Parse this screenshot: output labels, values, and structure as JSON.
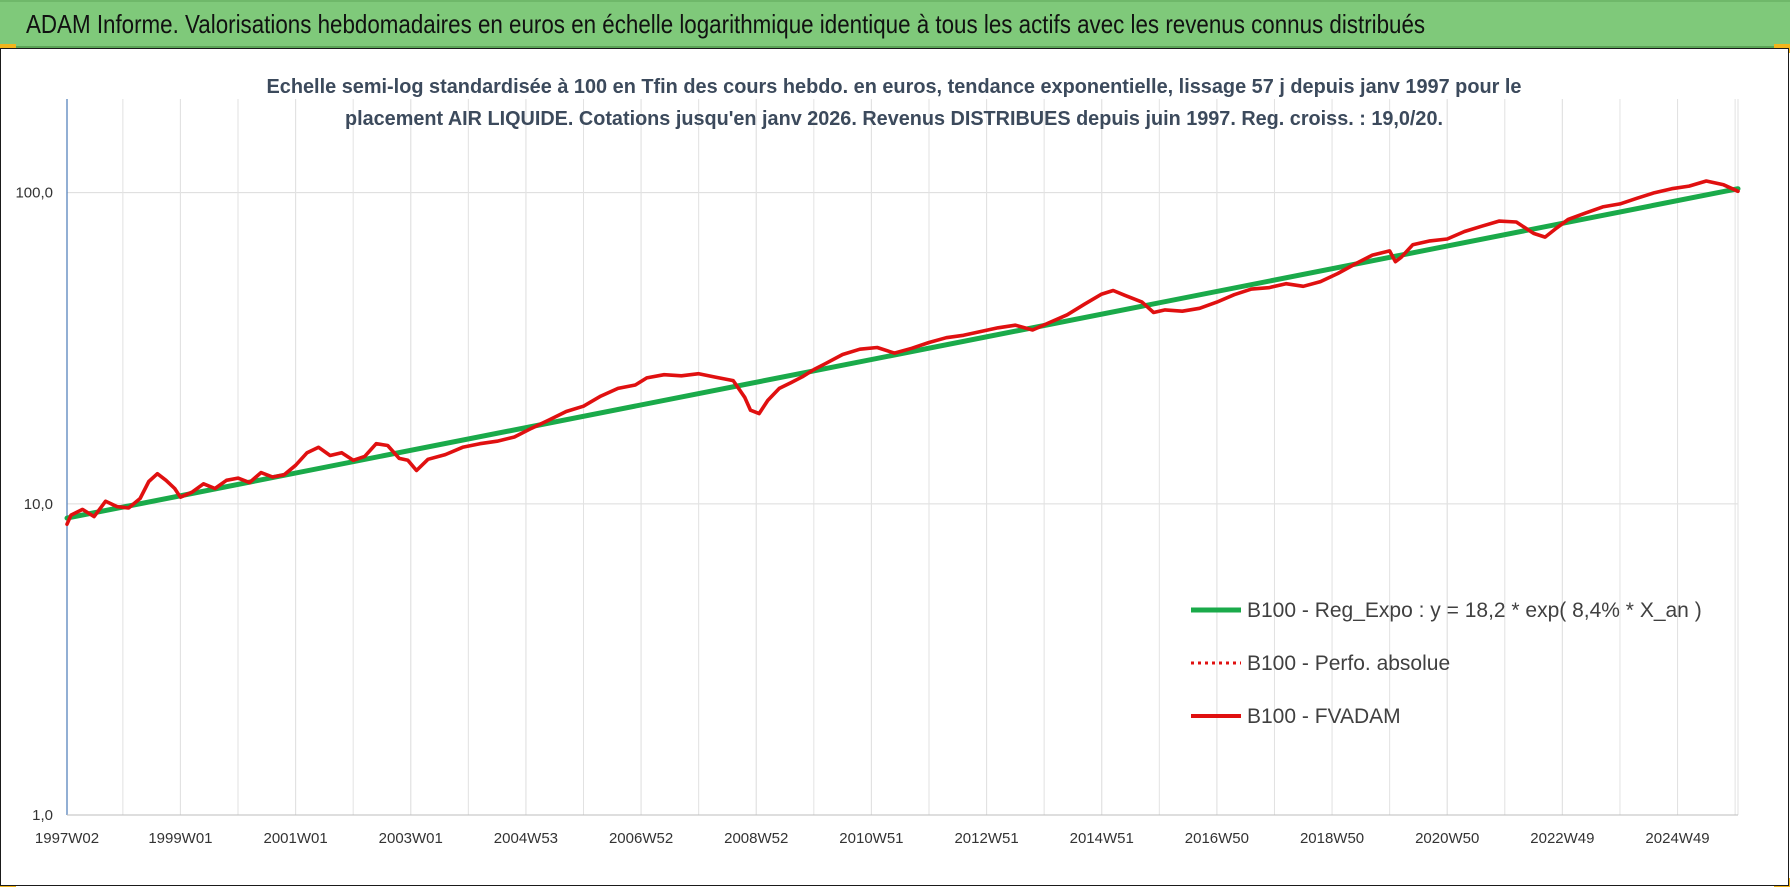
{
  "banner": {
    "title": "ADAM Informe. Valorisations hebdomadaires en euros en échelle logarithmique identique à tous les actifs avec les revenus connus distribués",
    "background": "#7fc97a",
    "corner_color": "#f2b51c"
  },
  "chart_data": {
    "type": "line",
    "title_lines": [
      "Echelle semi-log standardisée à 100 en Tfin des cours hebdo. en euros, tendance exponentielle, lissage 57 j depuis janv 1997 pour le",
      "placement AIR LIQUIDE. Cotations jusqu'en janv 2026. Revenus DISTRIBUES depuis juin 1997. Reg. croiss. : 19,0/20."
    ],
    "y_scale": "log",
    "ylim": [
      1,
      200
    ],
    "y_ticks": [
      {
        "value": 1,
        "label": "1,0"
      },
      {
        "value": 10,
        "label": "10,0"
      },
      {
        "value": 100,
        "label": "100,0"
      }
    ],
    "xlim": [
      1997.03,
      2026.05
    ],
    "x_ticks": [
      {
        "value": 1997.03,
        "label": "1997W02"
      },
      {
        "value": 1999.0,
        "label": "1999W01"
      },
      {
        "value": 2001.0,
        "label": "2001W01"
      },
      {
        "value": 2003.0,
        "label": "2003W01"
      },
      {
        "value": 2005.0,
        "label": "2004W53"
      },
      {
        "value": 2007.0,
        "label": "2006W52"
      },
      {
        "value": 2009.0,
        "label": "2008W52"
      },
      {
        "value": 2011.0,
        "label": "2010W51"
      },
      {
        "value": 2013.0,
        "label": "2012W51"
      },
      {
        "value": 2015.0,
        "label": "2014W51"
      },
      {
        "value": 2017.0,
        "label": "2016W50"
      },
      {
        "value": 2019.0,
        "label": "2018W50"
      },
      {
        "value": 2021.0,
        "label": "2020W50"
      },
      {
        "value": 2023.0,
        "label": "2022W49"
      },
      {
        "value": 2025.0,
        "label": "2024W49"
      }
    ],
    "grid": "vertical and horizontal",
    "legend_position": "bottom-right",
    "series": [
      {
        "name": "B100 - Reg_Expo : y = 18,2 * exp( 8,4% *  X_an )",
        "color": "#1aaa4a",
        "style": "solid",
        "x": [
          1997.03,
          2026.05
        ],
        "y": [
          9.0,
          103.0
        ]
      },
      {
        "name": "B100 - Perfo. absolue",
        "color": "#e01010",
        "style": "dotted",
        "x": [],
        "y": []
      },
      {
        "name": "B100 - FVADAM",
        "color": "#e01010",
        "style": "solid",
        "x": [
          1997.03,
          1997.1,
          1997.3,
          1997.5,
          1997.7,
          1997.9,
          1998.1,
          1998.3,
          1998.45,
          1998.6,
          1998.75,
          1998.9,
          1999.0,
          1999.2,
          1999.4,
          1999.6,
          1999.8,
          2000.0,
          2000.2,
          2000.4,
          2000.6,
          2000.8,
          2001.0,
          2001.2,
          2001.4,
          2001.6,
          2001.8,
          2002.0,
          2002.2,
          2002.4,
          2002.6,
          2002.8,
          2002.95,
          2003.1,
          2003.3,
          2003.6,
          2003.9,
          2004.2,
          2004.5,
          2004.8,
          2005.1,
          2005.4,
          2005.7,
          2006.0,
          2006.3,
          2006.6,
          2006.9,
          2007.1,
          2007.4,
          2007.7,
          2008.0,
          2008.3,
          2008.6,
          2008.8,
          2008.9,
          2009.05,
          2009.2,
          2009.4,
          2009.6,
          2009.8,
          2010.0,
          2010.2,
          2010.5,
          2010.8,
          2011.1,
          2011.4,
          2011.7,
          2012.0,
          2012.3,
          2012.6,
          2012.9,
          2013.2,
          2013.5,
          2013.8,
          2014.1,
          2014.4,
          2014.7,
          2015.0,
          2015.2,
          2015.4,
          2015.7,
          2015.9,
          2016.1,
          2016.4,
          2016.7,
          2017.0,
          2017.3,
          2017.6,
          2017.9,
          2018.2,
          2018.5,
          2018.8,
          2019.1,
          2019.4,
          2019.7,
          2020.0,
          2020.1,
          2020.2,
          2020.4,
          2020.7,
          2021.0,
          2021.3,
          2021.6,
          2021.9,
          2022.2,
          2022.5,
          2022.7,
          2022.9,
          2023.1,
          2023.4,
          2023.7,
          2024.0,
          2024.3,
          2024.6,
          2024.9,
          2025.2,
          2025.5,
          2025.8,
          2026.05
        ],
        "y": [
          8.6,
          9.2,
          9.6,
          9.1,
          10.2,
          9.8,
          9.7,
          10.4,
          11.8,
          12.5,
          11.9,
          11.2,
          10.5,
          10.9,
          11.6,
          11.2,
          11.9,
          12.1,
          11.7,
          12.6,
          12.2,
          12.4,
          13.3,
          14.6,
          15.2,
          14.3,
          14.6,
          13.8,
          14.2,
          15.6,
          15.4,
          14.0,
          13.8,
          12.8,
          13.9,
          14.4,
          15.2,
          15.6,
          15.9,
          16.4,
          17.5,
          18.6,
          19.8,
          20.6,
          22.2,
          23.5,
          24.1,
          25.4,
          26.0,
          25.8,
          26.2,
          25.5,
          24.9,
          22.0,
          20.0,
          19.5,
          21.5,
          23.5,
          24.5,
          25.6,
          27.0,
          28.2,
          30.2,
          31.4,
          31.8,
          30.5,
          31.6,
          33.0,
          34.2,
          34.8,
          35.8,
          36.8,
          37.5,
          36.2,
          38.3,
          40.5,
          43.8,
          47.2,
          48.5,
          46.8,
          44.5,
          41.2,
          42.0,
          41.6,
          42.5,
          44.5,
          47.0,
          49.0,
          49.5,
          51.0,
          50.0,
          51.8,
          55.0,
          59.0,
          63.0,
          65.0,
          60.0,
          62.0,
          68.0,
          70.0,
          71.0,
          75.0,
          78.0,
          81.0,
          80.5,
          74.0,
          72.0,
          77.0,
          82.0,
          86.0,
          90.0,
          92.0,
          96.0,
          100.0,
          103.0,
          105.0,
          109.0,
          106.0,
          101.0
        ]
      }
    ]
  }
}
